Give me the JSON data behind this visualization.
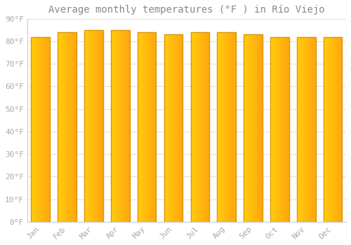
{
  "title": "Average monthly temperatures (°F ) in Río Viejo",
  "months": [
    "Jan",
    "Feb",
    "Mar",
    "Apr",
    "May",
    "Jun",
    "Jul",
    "Aug",
    "Sep",
    "Oct",
    "Nov",
    "Dec"
  ],
  "values": [
    82,
    84,
    85,
    85,
    84,
    83,
    84,
    84,
    83,
    82,
    82,
    82
  ],
  "bar_color_top": "#FFA520",
  "bar_color_bottom": "#FFB340",
  "bar_edge_color": "#D4920A",
  "background_color": "#ffffff",
  "plot_bg_color": "#ffffff",
  "grid_color": "#e0e0e0",
  "ylim": [
    0,
    90
  ],
  "yticks": [
    0,
    10,
    20,
    30,
    40,
    50,
    60,
    70,
    80,
    90
  ],
  "ytick_labels": [
    "0°F",
    "10°F",
    "20°F",
    "30°F",
    "40°F",
    "50°F",
    "60°F",
    "70°F",
    "80°F",
    "90°F"
  ],
  "font_color": "#aaaaaa",
  "title_fontsize": 10,
  "tick_fontsize": 8,
  "bar_width": 0.7,
  "title_color": "#888888"
}
